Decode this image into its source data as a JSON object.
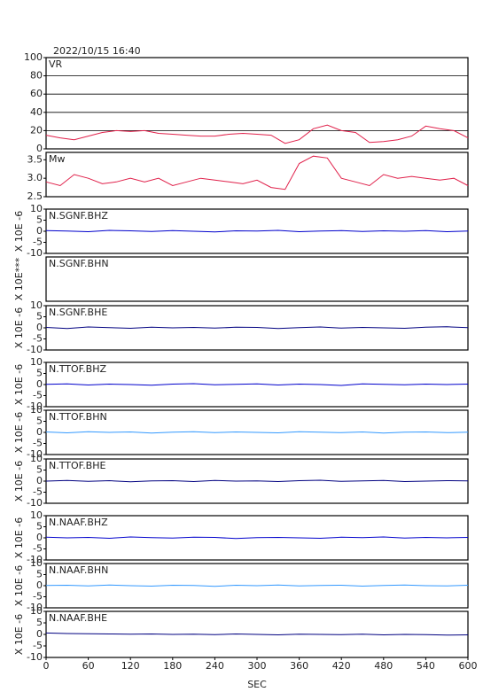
{
  "chart_data": [
    {
      "type": "line",
      "title": "2022/10/15  16:40",
      "label": "VR",
      "grid": true,
      "x": [
        0,
        20,
        40,
        60,
        80,
        100,
        120,
        140,
        160,
        180,
        200,
        220,
        240,
        260,
        280,
        300,
        320,
        340,
        360,
        380,
        400,
        420,
        440,
        460,
        480,
        500,
        520,
        540,
        560,
        580,
        600
      ],
      "series": [
        {
          "color": "#e0204a",
          "values": [
            15,
            12,
            10,
            14,
            18,
            20,
            19,
            20,
            17,
            16,
            15,
            14,
            14,
            16,
            17,
            16,
            15,
            6,
            10,
            22,
            26,
            20,
            18,
            7,
            8,
            10,
            14,
            25,
            22,
            20,
            12
          ]
        }
      ],
      "ylim": [
        0,
        100
      ],
      "yticks": [
        0,
        20,
        40,
        60,
        80,
        100
      ]
    },
    {
      "type": "line",
      "label": "Mw",
      "x": [
        0,
        20,
        40,
        60,
        80,
        100,
        120,
        140,
        160,
        180,
        200,
        220,
        240,
        260,
        280,
        300,
        320,
        340,
        360,
        380,
        400,
        420,
        440,
        460,
        480,
        500,
        520,
        540,
        560,
        580,
        600
      ],
      "series": [
        {
          "color": "#e0204a",
          "values": [
            2.9,
            2.8,
            3.1,
            3.0,
            2.85,
            2.9,
            3.0,
            2.9,
            3.0,
            2.8,
            2.9,
            3.0,
            2.95,
            2.9,
            2.85,
            2.95,
            2.75,
            2.7,
            3.4,
            3.6,
            3.55,
            3.0,
            2.9,
            2.8,
            3.1,
            3.0,
            3.05,
            3.0,
            2.95,
            3.0,
            2.8
          ]
        }
      ],
      "ylim": [
        2.5,
        3.7
      ],
      "yticks": [
        2.5,
        {
          "value": 3,
          "label": "3.0"
        },
        3.5
      ]
    },
    {
      "type": "line",
      "label": "N.SGNF.BHZ",
      "ylabel": "X 10E -6",
      "x": [
        0,
        30,
        60,
        90,
        120,
        150,
        180,
        210,
        240,
        270,
        300,
        330,
        360,
        390,
        420,
        450,
        480,
        510,
        540,
        570,
        600
      ],
      "series": [
        {
          "color": "#0000cc",
          "values": [
            0.3,
            0.1,
            -0.2,
            0.4,
            0.2,
            -0.1,
            0.3,
            0.0,
            -0.3,
            0.2,
            0.1,
            0.4,
            -0.2,
            0.1,
            0.3,
            -0.1,
            0.2,
            0.0,
            0.3,
            -0.2,
            0.1
          ]
        }
      ],
      "ylim": [
        -10,
        10
      ],
      "yticks": [
        -10,
        -5,
        0,
        5,
        10
      ]
    },
    {
      "type": "line",
      "label": "N.SGNF.BHN",
      "ylabel": "X 10E***"
    },
    {
      "type": "line",
      "label": "N.SGNF.BHE",
      "ylabel": "X 10E -6",
      "x": [
        0,
        30,
        60,
        90,
        120,
        150,
        180,
        210,
        240,
        270,
        300,
        330,
        360,
        390,
        420,
        450,
        480,
        510,
        540,
        570,
        600
      ],
      "series": [
        {
          "color": "#000080",
          "values": [
            0.2,
            -0.3,
            0.4,
            0.1,
            -0.2,
            0.3,
            0.0,
            0.2,
            -0.1,
            0.3,
            0.2,
            -0.3,
            0.1,
            0.4,
            -0.1,
            0.2,
            0.0,
            -0.2,
            0.3,
            0.5,
            0.1
          ]
        }
      ],
      "ylim": [
        -10,
        10
      ],
      "yticks": [
        -10,
        -5,
        0,
        5,
        10
      ]
    },
    {
      "type": "line",
      "label": "N.TTOF.BHZ",
      "ylabel": "X 10E -6",
      "x": [
        0,
        30,
        60,
        90,
        120,
        150,
        180,
        210,
        240,
        270,
        300,
        330,
        360,
        390,
        420,
        450,
        480,
        510,
        540,
        570,
        600
      ],
      "series": [
        {
          "color": "#0000cc",
          "values": [
            0.1,
            0.3,
            -0.2,
            0.2,
            0.0,
            -0.3,
            0.2,
            0.4,
            -0.1,
            0.1,
            0.3,
            -0.2,
            0.2,
            0.0,
            -0.4,
            0.3,
            0.1,
            -0.1,
            0.2,
            0.0,
            0.2
          ]
        }
      ],
      "ylim": [
        -10,
        10
      ],
      "yticks": [
        -10,
        -5,
        0,
        5,
        10
      ]
    },
    {
      "type": "line",
      "label": "N.TTOF.BHN",
      "ylabel": "X 10E -6",
      "x": [
        0,
        30,
        60,
        90,
        120,
        150,
        180,
        210,
        240,
        270,
        300,
        330,
        360,
        390,
        420,
        450,
        480,
        510,
        540,
        570,
        600
      ],
      "series": [
        {
          "color": "#3399ff",
          "values": [
            0.2,
            -0.2,
            0.3,
            0.0,
            0.2,
            -0.3,
            0.1,
            0.3,
            -0.1,
            0.2,
            0.0,
            -0.2,
            0.3,
            0.1,
            -0.1,
            0.2,
            -0.3,
            0.1,
            0.2,
            -0.1,
            0.1
          ]
        }
      ],
      "ylim": [
        -10,
        10
      ],
      "yticks": [
        -10,
        -5,
        0,
        5,
        10
      ]
    },
    {
      "type": "line",
      "label": "N.TTOF.BHE",
      "ylabel": "X 10E -6",
      "x": [
        0,
        30,
        60,
        90,
        120,
        150,
        180,
        210,
        240,
        270,
        300,
        330,
        360,
        390,
        420,
        450,
        480,
        510,
        540,
        570,
        600
      ],
      "series": [
        {
          "color": "#000080",
          "values": [
            0.0,
            0.3,
            -0.1,
            0.2,
            -0.3,
            0.1,
            0.2,
            -0.2,
            0.3,
            0.0,
            0.1,
            -0.2,
            0.2,
            0.4,
            -0.1,
            0.1,
            0.3,
            -0.2,
            0.0,
            0.2,
            0.1
          ]
        }
      ],
      "ylim": [
        -10,
        10
      ],
      "yticks": [
        -10,
        -5,
        0,
        5,
        10
      ]
    },
    {
      "type": "line",
      "label": "N.NAAF.BHZ",
      "ylabel": "X 10E -6",
      "x": [
        0,
        30,
        60,
        90,
        120,
        150,
        180,
        210,
        240,
        270,
        300,
        330,
        360,
        390,
        420,
        450,
        480,
        510,
        540,
        570,
        600
      ],
      "series": [
        {
          "color": "#0000cc",
          "values": [
            0.3,
            0.0,
            0.2,
            -0.2,
            0.4,
            0.1,
            -0.1,
            0.3,
            0.2,
            -0.3,
            0.1,
            0.2,
            0.0,
            -0.2,
            0.3,
            0.1,
            0.4,
            -0.1,
            0.2,
            0.0,
            0.2
          ]
        }
      ],
      "ylim": [
        -10,
        10
      ],
      "yticks": [
        -10,
        -5,
        0,
        5,
        10
      ]
    },
    {
      "type": "line",
      "label": "N.NAAF.BHN",
      "ylabel": "X 10E -6",
      "x": [
        0,
        30,
        60,
        90,
        120,
        150,
        180,
        210,
        240,
        270,
        300,
        330,
        360,
        390,
        420,
        450,
        480,
        510,
        540,
        570,
        600
      ],
      "series": [
        {
          "color": "#3399ff",
          "values": [
            0.1,
            0.2,
            -0.1,
            0.3,
            0.0,
            -0.2,
            0.2,
            0.1,
            -0.3,
            0.2,
            0.0,
            0.3,
            -0.1,
            0.1,
            0.2,
            -0.2,
            0.1,
            0.3,
            0.0,
            -0.1,
            0.2
          ]
        }
      ],
      "ylim": [
        -10,
        10
      ],
      "yticks": [
        -10,
        -5,
        0,
        5,
        10
      ]
    },
    {
      "type": "line",
      "label": "N.NAAF.BHE",
      "ylabel": "X 10E -6",
      "xlabel": "SEC",
      "x": [
        0,
        30,
        60,
        90,
        120,
        150,
        180,
        210,
        240,
        270,
        300,
        330,
        360,
        390,
        420,
        450,
        480,
        510,
        540,
        570,
        600
      ],
      "series": [
        {
          "color": "#000080",
          "values": [
            0.6,
            0.4,
            0.3,
            0.2,
            0.1,
            0.2,
            0.0,
            0.1,
            -0.1,
            0.2,
            0.0,
            -0.2,
            0.1,
            0.0,
            -0.1,
            0.1,
            -0.2,
            0.0,
            -0.1,
            -0.3,
            -0.2
          ]
        }
      ],
      "ylim": [
        -10,
        10
      ],
      "yticks": [
        -10,
        -5,
        0,
        5,
        10
      ],
      "xlim": [
        0,
        600
      ],
      "xticks": [
        0,
        60,
        120,
        180,
        240,
        300,
        360,
        420,
        480,
        540,
        600
      ]
    }
  ]
}
